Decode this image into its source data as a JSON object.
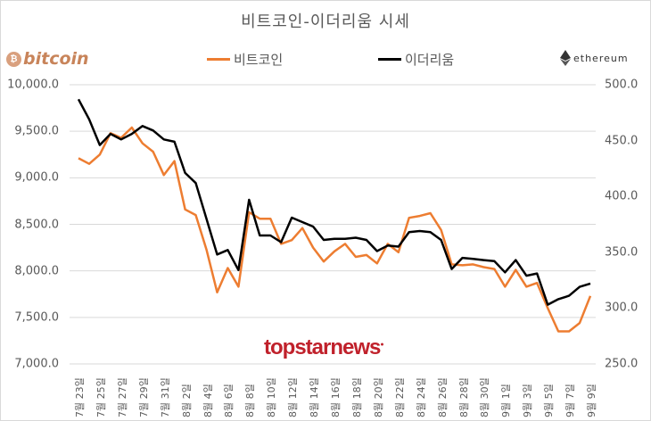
{
  "title": "비트코인-이더리움 시세",
  "logos": {
    "bitcoin": "bitcoin",
    "bitcoin_symbol": "₿",
    "ethereum": "ethereum"
  },
  "legend": [
    {
      "name": "비트코인",
      "color": "#ed7d31"
    },
    {
      "name": "이더리움",
      "color": "#000000"
    }
  ],
  "watermark": "topstarnews",
  "colors": {
    "btc": "#ed7d31",
    "eth": "#000000",
    "grid": "#d9d9d9",
    "text": "#595959",
    "watermark": "#c0212b"
  },
  "chart_data": {
    "type": "line",
    "title": "비트코인-이더리움 시세",
    "xlabel": "",
    "ylabel": "",
    "y_left": {
      "label": "비트코인",
      "ylim": [
        7000,
        10000
      ],
      "ticks": [
        "10,000.0",
        "9,500.0",
        "9,000.0",
        "8,500.0",
        "8,000.0",
        "7,500.0",
        "7,000.0"
      ]
    },
    "y_right": {
      "label": "이더리움",
      "ylim": [
        250,
        500
      ],
      "ticks": [
        "500.0",
        "450.0",
        "400.0",
        "350.0",
        "300.0",
        "250.0"
      ]
    },
    "grid": true,
    "legend_position": "top",
    "x": [
      "7월 23일",
      "7월 24일",
      "7월 25일",
      "7월 26일",
      "7월 27일",
      "7월 28일",
      "7월 29일",
      "7월 30일",
      "7월 31일",
      "8월 1일",
      "8월 2일",
      "8월 3일",
      "8월 4일",
      "8월 5일",
      "8월 6일",
      "8월 7일",
      "8월 8일",
      "8월 9일",
      "8월 10일",
      "8월 11일",
      "8월 12일",
      "8월 13일",
      "8월 14일",
      "8월 15일",
      "8월 16일",
      "8월 17일",
      "8월 18일",
      "8월 19일",
      "8월 20일",
      "8월 21일",
      "8월 22일",
      "8월 23일",
      "8월 24일",
      "8월 25일",
      "8월 26일",
      "8월 27일",
      "8월 28일",
      "8월 29일",
      "8월 30일",
      "8월 31일",
      "9월 1일",
      "9월 2일",
      "9월 3일",
      "9월 4일",
      "9월 5일",
      "9월 6일",
      "9월 7일",
      "9월 8일",
      "9월 9일"
    ],
    "tick_labels": [
      "7월 23일",
      "7월 25일",
      "7월 27일",
      "7월 29일",
      "7월 31일",
      "8월 2일",
      "8월 4일",
      "8월 6일",
      "8월 8일",
      "8월 10일",
      "8월 12일",
      "8월 14일",
      "8월 16일",
      "8월 18일",
      "8월 20일",
      "8월 22일",
      "8월 24일",
      "8월 26일",
      "8월 28일",
      "8월 30일",
      "9월 1일",
      "9月 3일",
      "9월 5일",
      "9월 7일",
      "9월 9일"
    ],
    "series": [
      {
        "name": "비트코인",
        "axis": "left",
        "color": "#ed7d31",
        "values": [
          9210,
          9150,
          9250,
          9480,
          9430,
          9540,
          9370,
          9280,
          9030,
          9180,
          8660,
          8600,
          8230,
          7770,
          8030,
          7830,
          8630,
          8560,
          8560,
          8290,
          8330,
          8460,
          8250,
          8100,
          8210,
          8290,
          8150,
          8170,
          8080,
          8290,
          8200,
          8570,
          8590,
          8620,
          8440,
          8070,
          8060,
          8070,
          8040,
          8020,
          7830,
          8010,
          7830,
          7870,
          7600,
          7350,
          7350,
          7440,
          7730
        ]
      },
      {
        "name": "이더리움",
        "axis": "right",
        "color": "#000000",
        "values": [
          487,
          469,
          446,
          456,
          451,
          456,
          463,
          459,
          451,
          449,
          421,
          412,
          380,
          348,
          352,
          334,
          397,
          365,
          365,
          359,
          381,
          377,
          373,
          361,
          362,
          362,
          363,
          361,
          351,
          356,
          355,
          368,
          369,
          368,
          361,
          335,
          345,
          344,
          343,
          342,
          332,
          343,
          329,
          331,
          303,
          308,
          311,
          319,
          322
        ]
      }
    ]
  }
}
